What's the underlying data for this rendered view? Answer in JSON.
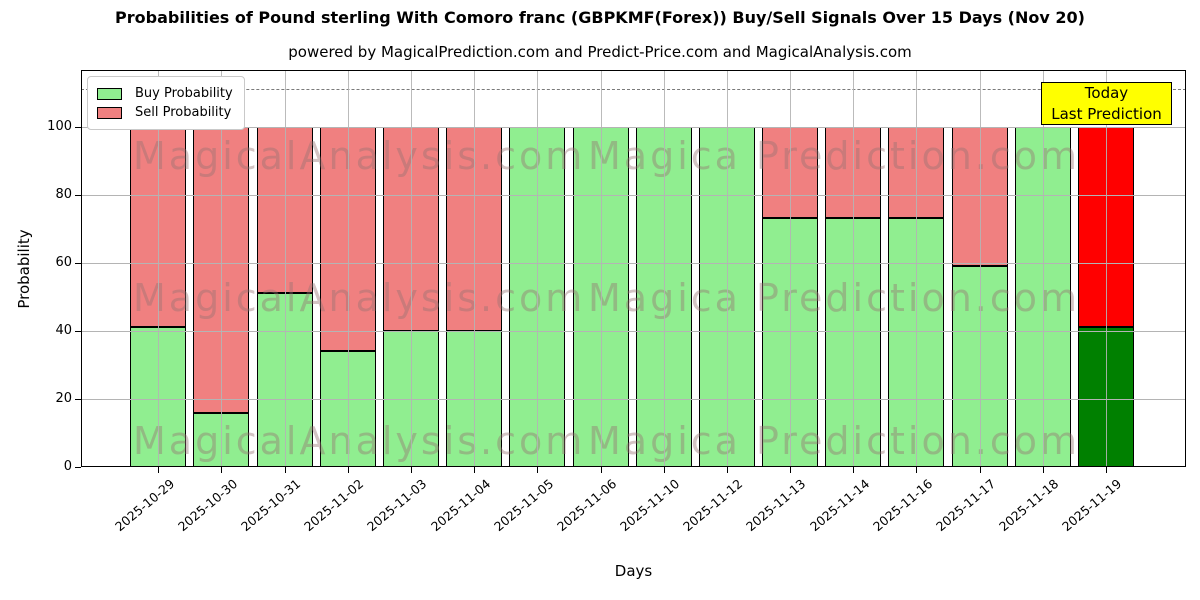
{
  "title": "Probabilities of Pound sterling With Comoro franc (GBPKMF(Forex)) Buy/Sell Signals Over 15 Days (Nov 20)",
  "subtitle": "powered by MagicalPrediction.com and Predict-Price.com and MagicalAnalysis.com",
  "xlabel": "Days",
  "ylabel": "Probability",
  "legend": {
    "buy_label": "Buy Probability",
    "sell_label": "Sell Probability"
  },
  "annotation_box": {
    "line1": "Today",
    "line2": "Last Prediction",
    "bg_color": "#ffff00"
  },
  "watermarks": [
    "MagicalAnalysis.com",
    "Magica Prediction.com"
  ],
  "chart_data": {
    "type": "bar",
    "stacked": true,
    "title": "Probabilities of Pound sterling With Comoro franc (GBPKMF(Forex)) Buy/Sell Signals Over 15 Days (Nov 20)",
    "xlabel": "Days",
    "ylabel": "Probability",
    "categories": [
      "2025-10-29",
      "2025-10-30",
      "2025-10-31",
      "2025-11-02",
      "2025-11-03",
      "2025-11-04",
      "2025-11-05",
      "2025-11-06",
      "2025-11-10",
      "2025-11-12",
      "2025-11-13",
      "2025-11-14",
      "2025-11-16",
      "2025-11-17",
      "2025-11-18",
      "2025-11-19"
    ],
    "series": [
      {
        "name": "Buy Probability",
        "color": "#90ee90",
        "values": [
          41,
          16,
          51,
          34,
          40,
          40,
          100,
          100,
          100,
          100,
          73,
          73,
          73,
          59,
          100,
          41
        ]
      },
      {
        "name": "Sell Probability",
        "color": "#f08080",
        "values": [
          59,
          84,
          49,
          66,
          60,
          60,
          0,
          0,
          0,
          0,
          27,
          27,
          27,
          41,
          0,
          59
        ]
      }
    ],
    "today_bar": {
      "index": 15,
      "buy_color": "#008000",
      "sell_color": "#ff0000"
    },
    "yticks": [
      0,
      20,
      40,
      60,
      80,
      100
    ],
    "ylim": [
      0,
      116.6
    ],
    "dashed_line_y": 111,
    "grid": true,
    "grid_color": "#b4b4b4",
    "bar_edge_color": "#000000",
    "legend_position": "upper-left"
  }
}
